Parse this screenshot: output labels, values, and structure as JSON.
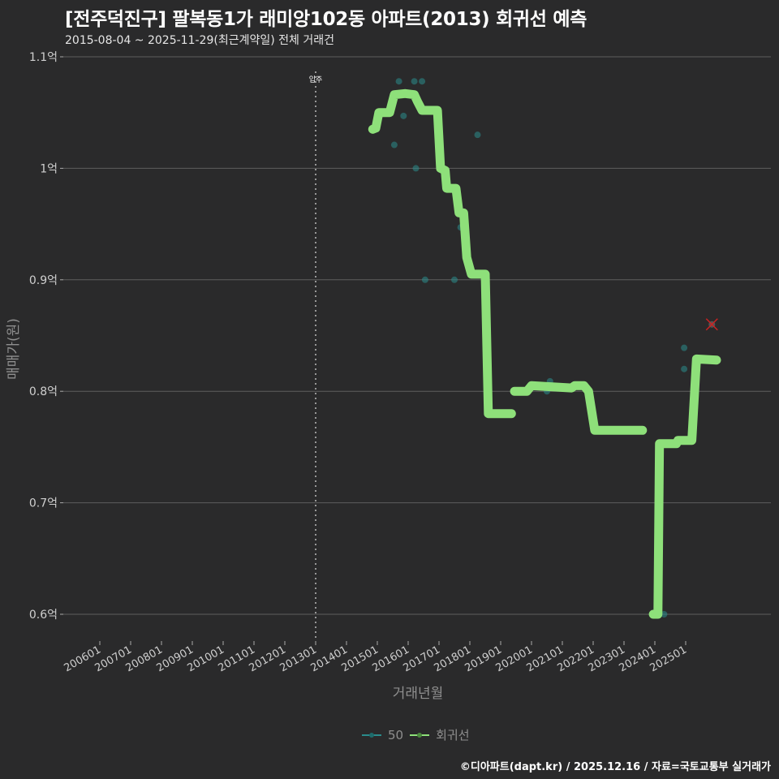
{
  "header": {
    "title": "[전주덕진구] 팔복동1가 래미앙102동 아파트(2013) 회귀선 예측",
    "subtitle": "2015-08-04 ~ 2025-11-29(최근계약일) 전체 거래건"
  },
  "legend": {
    "items": [
      {
        "label": "50",
        "color": "#2a8c8c"
      },
      {
        "label": "회귀선",
        "color": "#8ee07a"
      }
    ]
  },
  "caption": "©디아파트(dapt.kr) / 2025.12.16 / 자료=국토교통부 실거래가",
  "chart_data": {
    "type": "line",
    "title": "[전주덕진구] 팔복동1가 래미앙102동 아파트(2013) 회귀선 예측",
    "subtitle": "2015-08-04 ~ 2025-11-29(최근계약일) 전체 거래건",
    "xlabel": "거래년월",
    "ylabel": "매매가(원)",
    "ylim": [
      0.58,
      1.1
    ],
    "y_unit": "억",
    "grid": true,
    "legend_position": "bottom",
    "yticks": [
      {
        "label": "1.1억",
        "value": 1.1
      },
      {
        "label": "1억",
        "value": 1.0
      },
      {
        "label": "0.9억",
        "value": 0.9
      },
      {
        "label": "0.8억",
        "value": 0.8
      },
      {
        "label": "0.7억",
        "value": 0.7
      },
      {
        "label": "0.6억",
        "value": 0.6
      }
    ],
    "xticks": [
      "200601",
      "200701",
      "200801",
      "200901",
      "201001",
      "201101",
      "201201",
      "201301",
      "201401",
      "201501",
      "201601",
      "201701",
      "201801",
      "201901",
      "202001",
      "202101",
      "202201",
      "202301",
      "202401",
      "202501"
    ],
    "annotation": {
      "label": "입주",
      "x": "201301",
      "style": "dotted vertical line"
    },
    "series": [
      {
        "name": "회귀선",
        "color": "#8ee07a",
        "type": "step-line",
        "points": [
          {
            "x": 2014.85,
            "y": 1.035
          },
          {
            "x": 2014.95,
            "y": 1.036
          },
          {
            "x": 2015.05,
            "y": 1.05
          },
          {
            "x": 2015.4,
            "y": 1.05
          },
          {
            "x": 2015.55,
            "y": 1.066
          },
          {
            "x": 2015.9,
            "y": 1.067
          },
          {
            "x": 2016.2,
            "y": 1.066
          },
          {
            "x": 2016.3,
            "y": 1.06
          },
          {
            "x": 2016.45,
            "y": 1.052
          },
          {
            "x": 2016.95,
            "y": 1.052
          },
          {
            "x": 2017.05,
            "y": 1.0
          },
          {
            "x": 2017.2,
            "y": 0.998
          },
          {
            "x": 2017.25,
            "y": 0.982
          },
          {
            "x": 2017.55,
            "y": 0.982
          },
          {
            "x": 2017.65,
            "y": 0.96
          },
          {
            "x": 2017.8,
            "y": 0.96
          },
          {
            "x": 2017.9,
            "y": 0.92
          },
          {
            "x": 2018.0,
            "y": 0.91
          },
          {
            "x": 2018.05,
            "y": 0.905
          },
          {
            "x": 2018.5,
            "y": 0.905
          },
          {
            "x": 2018.6,
            "y": 0.78
          },
          {
            "x": 2019.35,
            "y": 0.78
          }
        ]
      },
      {
        "name": "회귀선",
        "color": "#8ee07a",
        "type": "step-line",
        "points": [
          {
            "x": 2019.45,
            "y": 0.8
          },
          {
            "x": 2019.85,
            "y": 0.8
          },
          {
            "x": 2020.0,
            "y": 0.805
          },
          {
            "x": 2021.3,
            "y": 0.803
          },
          {
            "x": 2021.4,
            "y": 0.805
          },
          {
            "x": 2021.7,
            "y": 0.805
          },
          {
            "x": 2021.85,
            "y": 0.8
          },
          {
            "x": 2022.05,
            "y": 0.765
          },
          {
            "x": 2023.6,
            "y": 0.765
          }
        ]
      },
      {
        "name": "회귀선",
        "color": "#8ee07a",
        "type": "step-line",
        "points": [
          {
            "x": 2023.95,
            "y": 0.6
          },
          {
            "x": 2024.1,
            "y": 0.6
          },
          {
            "x": 2024.15,
            "y": 0.753
          },
          {
            "x": 2024.7,
            "y": 0.753
          },
          {
            "x": 2024.75,
            "y": 0.756
          },
          {
            "x": 2025.2,
            "y": 0.756
          },
          {
            "x": 2025.35,
            "y": 0.829
          },
          {
            "x": 2026.0,
            "y": 0.828
          }
        ]
      },
      {
        "name": "50",
        "color": "#2a8c8c",
        "type": "scatter",
        "points": [
          {
            "x": 2015.55,
            "y": 1.021
          },
          {
            "x": 2015.7,
            "y": 1.078
          },
          {
            "x": 2015.85,
            "y": 1.047
          },
          {
            "x": 2016.2,
            "y": 1.078
          },
          {
            "x": 2016.25,
            "y": 1.0
          },
          {
            "x": 2016.45,
            "y": 1.078
          },
          {
            "x": 2016.55,
            "y": 0.9
          },
          {
            "x": 2017.5,
            "y": 0.9
          },
          {
            "x": 2017.7,
            "y": 0.947
          },
          {
            "x": 2018.25,
            "y": 1.03
          },
          {
            "x": 2020.6,
            "y": 0.809
          },
          {
            "x": 2020.5,
            "y": 0.8
          },
          {
            "x": 2024.3,
            "y": 0.6
          },
          {
            "x": 2024.95,
            "y": 0.839
          },
          {
            "x": 2024.95,
            "y": 0.82
          },
          {
            "x": 2025.2,
            "y": 0.765
          }
        ]
      },
      {
        "name": "예측",
        "color": "#cc2222",
        "type": "marker-x",
        "points": [
          {
            "x": 2025.85,
            "y": 0.86
          }
        ]
      }
    ]
  }
}
